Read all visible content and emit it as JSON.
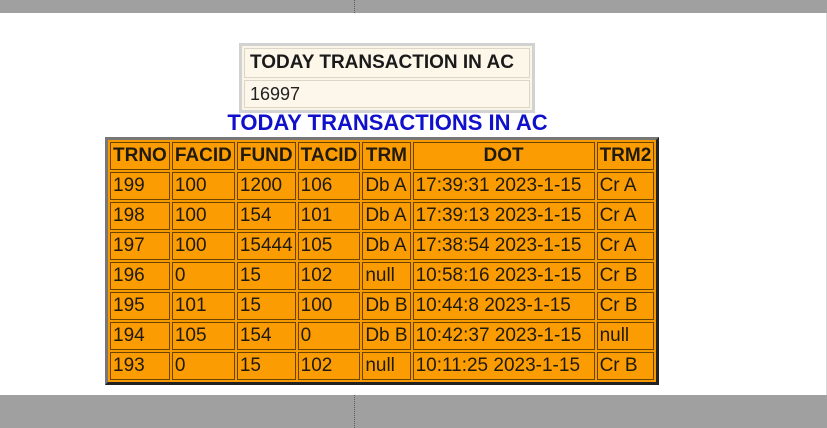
{
  "summary": {
    "heading": "TODAY TRANSACTION IN AC",
    "value": "16997"
  },
  "section_title": "TODAY TRANSACTIONS IN AC",
  "table": {
    "headers": [
      "TRNO",
      "FACID",
      "FUND",
      "TACID",
      "TRM",
      "DOT",
      "TRM2"
    ],
    "rows": [
      [
        "199",
        "100",
        "1200",
        "106",
        "Db A",
        "17:39:31 2023-1-15",
        "Cr A"
      ],
      [
        "198",
        "100",
        "154",
        "101",
        "Db A",
        "17:39:13 2023-1-15",
        "Cr A"
      ],
      [
        "197",
        "100",
        "15444",
        "105",
        "Db A",
        "17:38:54 2023-1-15",
        "Cr A"
      ],
      [
        "196",
        "0",
        "15",
        "102",
        "null",
        "10:58:16 2023-1-15",
        "Cr B"
      ],
      [
        "195",
        "101",
        "15",
        "100",
        "Db B",
        "10:44:8 2023-1-15",
        "Cr B"
      ],
      [
        "194",
        "105",
        "154",
        "0",
        "Db B",
        "10:42:37 2023-1-15",
        "null"
      ],
      [
        "193",
        "0",
        "15",
        "102",
        "null",
        "10:11:25 2023-1-15",
        "Cr B"
      ]
    ]
  },
  "colors": {
    "table_fill": "#fb9d02",
    "title_color": "#1010cc",
    "frame_bars": "#a0a0a0"
  }
}
